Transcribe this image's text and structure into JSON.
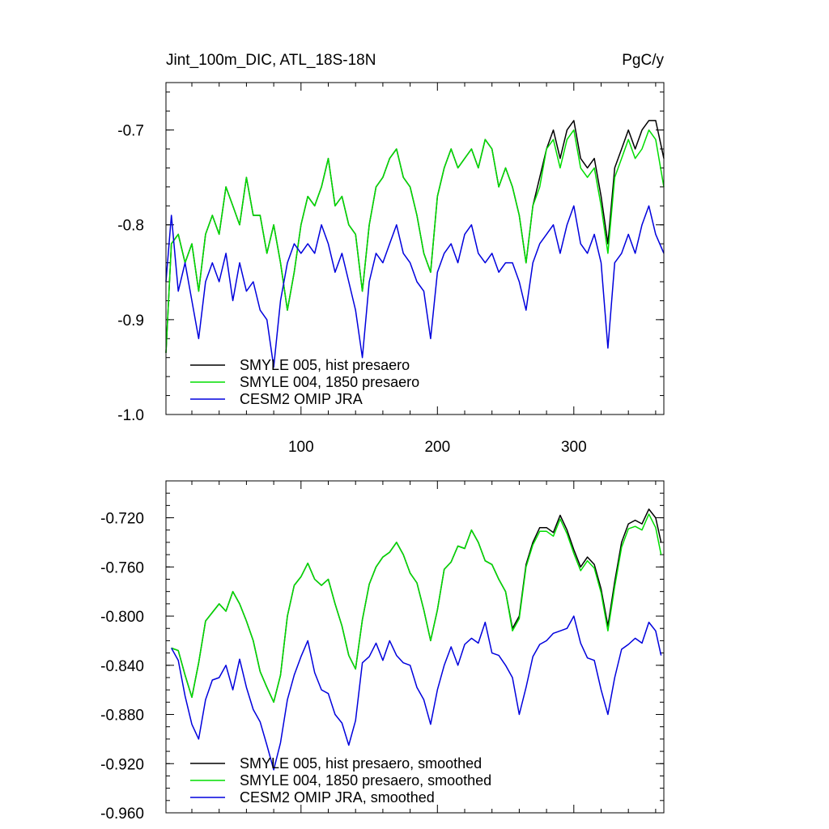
{
  "chart_data": [
    {
      "type": "line",
      "title": "Jint_100m_DIC, ATL_18S-18N",
      "units": "PgC/y",
      "xlabel": "",
      "ylabel": "",
      "xlim": [
        1,
        366
      ],
      "ylim": [
        -1.0,
        -0.65
      ],
      "xticks": [
        100,
        200,
        300
      ],
      "xtick_labels": [
        "100",
        "200",
        "300"
      ],
      "yticks": [
        -1.0,
        -0.9,
        -0.8,
        -0.7
      ],
      "ytick_labels": [
        "-1.0",
        "-0.9",
        "-0.8",
        "-0.7"
      ],
      "grid": false,
      "legend_position": "bottom-left",
      "series": [
        {
          "name": "SMYLE 005, hist presaero",
          "color": "#000000",
          "x": [
            1,
            5,
            10,
            15,
            20,
            25,
            30,
            35,
            40,
            45,
            50,
            55,
            60,
            65,
            70,
            75,
            80,
            85,
            90,
            95,
            100,
            105,
            110,
            115,
            120,
            125,
            130,
            135,
            140,
            145,
            150,
            155,
            160,
            165,
            170,
            175,
            180,
            185,
            190,
            195,
            200,
            205,
            210,
            215,
            220,
            225,
            230,
            235,
            240,
            245,
            250,
            255,
            260,
            265,
            270,
            275,
            280,
            285,
            290,
            295,
            300,
            305,
            310,
            315,
            320,
            325,
            330,
            335,
            340,
            345,
            350,
            355,
            360,
            366
          ],
          "values": [
            -0.935,
            -0.82,
            -0.81,
            -0.84,
            -0.82,
            -0.87,
            -0.81,
            -0.79,
            -0.81,
            -0.76,
            -0.78,
            -0.8,
            -0.75,
            -0.79,
            -0.79,
            -0.83,
            -0.8,
            -0.84,
            -0.89,
            -0.85,
            -0.8,
            -0.77,
            -0.78,
            -0.76,
            -0.73,
            -0.78,
            -0.77,
            -0.8,
            -0.81,
            -0.87,
            -0.8,
            -0.76,
            -0.75,
            -0.73,
            -0.72,
            -0.75,
            -0.76,
            -0.79,
            -0.83,
            -0.85,
            -0.77,
            -0.74,
            -0.72,
            -0.74,
            -0.73,
            -0.72,
            -0.74,
            -0.71,
            -0.72,
            -0.76,
            -0.74,
            -0.76,
            -0.79,
            -0.84,
            -0.78,
            -0.75,
            -0.72,
            -0.7,
            -0.73,
            -0.7,
            -0.69,
            -0.73,
            -0.74,
            -0.73,
            -0.77,
            -0.82,
            -0.74,
            -0.72,
            -0.7,
            -0.72,
            -0.7,
            -0.69,
            -0.69,
            -0.73
          ]
        },
        {
          "name": "SMYLE 004, 1850 presaero",
          "color": "#00dd00",
          "x": [
            1,
            5,
            10,
            15,
            20,
            25,
            30,
            35,
            40,
            45,
            50,
            55,
            60,
            65,
            70,
            75,
            80,
            85,
            90,
            95,
            100,
            105,
            110,
            115,
            120,
            125,
            130,
            135,
            140,
            145,
            150,
            155,
            160,
            165,
            170,
            175,
            180,
            185,
            190,
            195,
            200,
            205,
            210,
            215,
            220,
            225,
            230,
            235,
            240,
            245,
            250,
            255,
            260,
            265,
            270,
            275,
            280,
            285,
            290,
            295,
            300,
            305,
            310,
            315,
            320,
            325,
            330,
            335,
            340,
            345,
            350,
            355,
            360,
            366
          ],
          "values": [
            -0.935,
            -0.82,
            -0.81,
            -0.84,
            -0.82,
            -0.87,
            -0.81,
            -0.79,
            -0.81,
            -0.76,
            -0.78,
            -0.8,
            -0.75,
            -0.79,
            -0.79,
            -0.83,
            -0.8,
            -0.84,
            -0.89,
            -0.85,
            -0.8,
            -0.77,
            -0.78,
            -0.76,
            -0.73,
            -0.78,
            -0.77,
            -0.8,
            -0.81,
            -0.87,
            -0.8,
            -0.76,
            -0.75,
            -0.73,
            -0.72,
            -0.75,
            -0.76,
            -0.79,
            -0.83,
            -0.85,
            -0.77,
            -0.74,
            -0.72,
            -0.74,
            -0.73,
            -0.72,
            -0.74,
            -0.71,
            -0.72,
            -0.76,
            -0.74,
            -0.76,
            -0.79,
            -0.84,
            -0.78,
            -0.76,
            -0.72,
            -0.71,
            -0.74,
            -0.71,
            -0.7,
            -0.74,
            -0.75,
            -0.74,
            -0.78,
            -0.83,
            -0.75,
            -0.73,
            -0.71,
            -0.73,
            -0.72,
            -0.7,
            -0.71,
            -0.76
          ]
        },
        {
          "name": "CESM2 OMIP JRA",
          "color": "#0000dd",
          "x": [
            1,
            5,
            10,
            15,
            20,
            25,
            30,
            35,
            40,
            45,
            50,
            55,
            60,
            65,
            70,
            75,
            80,
            85,
            90,
            95,
            100,
            105,
            110,
            115,
            120,
            125,
            130,
            135,
            140,
            145,
            150,
            155,
            160,
            165,
            170,
            175,
            180,
            185,
            190,
            195,
            200,
            205,
            210,
            215,
            220,
            225,
            230,
            235,
            240,
            245,
            250,
            255,
            260,
            265,
            270,
            275,
            280,
            285,
            290,
            295,
            300,
            305,
            310,
            315,
            320,
            325,
            330,
            335,
            340,
            345,
            350,
            355,
            360,
            366
          ],
          "values": [
            -0.86,
            -0.79,
            -0.87,
            -0.84,
            -0.88,
            -0.92,
            -0.86,
            -0.84,
            -0.86,
            -0.83,
            -0.88,
            -0.84,
            -0.87,
            -0.86,
            -0.89,
            -0.9,
            -0.95,
            -0.88,
            -0.84,
            -0.82,
            -0.83,
            -0.82,
            -0.83,
            -0.8,
            -0.82,
            -0.85,
            -0.83,
            -0.86,
            -0.89,
            -0.94,
            -0.86,
            -0.83,
            -0.84,
            -0.82,
            -0.8,
            -0.83,
            -0.84,
            -0.86,
            -0.87,
            -0.92,
            -0.85,
            -0.83,
            -0.82,
            -0.84,
            -0.81,
            -0.8,
            -0.83,
            -0.84,
            -0.83,
            -0.85,
            -0.84,
            -0.84,
            -0.86,
            -0.89,
            -0.84,
            -0.82,
            -0.81,
            -0.8,
            -0.83,
            -0.8,
            -0.78,
            -0.82,
            -0.83,
            -0.81,
            -0.84,
            -0.93,
            -0.84,
            -0.83,
            -0.81,
            -0.83,
            -0.8,
            -0.78,
            -0.81,
            -0.83
          ]
        }
      ]
    },
    {
      "type": "line",
      "title": "",
      "xlabel": "",
      "ylabel": "",
      "xlim": [
        1,
        366
      ],
      "ylim": [
        -0.96,
        -0.69
      ],
      "xticks": [
        100,
        200,
        300
      ],
      "xtick_labels": [],
      "yticks": [
        -0.96,
        -0.92,
        -0.88,
        -0.84,
        -0.8,
        -0.76,
        -0.72
      ],
      "ytick_labels": [
        "-0.960",
        "-0.920",
        "-0.880",
        "-0.840",
        "-0.800",
        "-0.760",
        "-0.720"
      ],
      "grid": false,
      "legend_position": "bottom-left",
      "series": [
        {
          "name": "SMYLE 005, hist presaero, smoothed",
          "color": "#000000",
          "x": [
            5,
            10,
            15,
            20,
            25,
            30,
            35,
            40,
            45,
            50,
            55,
            60,
            65,
            70,
            75,
            80,
            85,
            90,
            95,
            100,
            105,
            110,
            115,
            120,
            125,
            130,
            135,
            140,
            145,
            150,
            155,
            160,
            165,
            170,
            175,
            180,
            185,
            190,
            195,
            200,
            205,
            210,
            215,
            220,
            225,
            230,
            235,
            240,
            245,
            250,
            255,
            260,
            265,
            270,
            275,
            280,
            285,
            290,
            295,
            300,
            305,
            310,
            315,
            320,
            325,
            330,
            335,
            340,
            345,
            350,
            355,
            360,
            364
          ],
          "values": [
            -0.826,
            -0.828,
            -0.848,
            -0.866,
            -0.838,
            -0.804,
            -0.797,
            -0.79,
            -0.796,
            -0.78,
            -0.79,
            -0.804,
            -0.82,
            -0.845,
            -0.858,
            -0.87,
            -0.848,
            -0.8,
            -0.775,
            -0.768,
            -0.757,
            -0.77,
            -0.775,
            -0.77,
            -0.79,
            -0.808,
            -0.832,
            -0.843,
            -0.803,
            -0.774,
            -0.76,
            -0.752,
            -0.748,
            -0.74,
            -0.75,
            -0.765,
            -0.773,
            -0.795,
            -0.82,
            -0.795,
            -0.762,
            -0.756,
            -0.743,
            -0.745,
            -0.73,
            -0.74,
            -0.755,
            -0.758,
            -0.77,
            -0.78,
            -0.81,
            -0.8,
            -0.758,
            -0.74,
            -0.728,
            -0.728,
            -0.732,
            -0.718,
            -0.73,
            -0.746,
            -0.76,
            -0.752,
            -0.758,
            -0.778,
            -0.808,
            -0.772,
            -0.74,
            -0.725,
            -0.722,
            -0.725,
            -0.713,
            -0.72,
            -0.74
          ]
        },
        {
          "name": "SMYLE 004, 1850 presaero, smoothed",
          "color": "#00dd00",
          "x": [
            5,
            10,
            15,
            20,
            25,
            30,
            35,
            40,
            45,
            50,
            55,
            60,
            65,
            70,
            75,
            80,
            85,
            90,
            95,
            100,
            105,
            110,
            115,
            120,
            125,
            130,
            135,
            140,
            145,
            150,
            155,
            160,
            165,
            170,
            175,
            180,
            185,
            190,
            195,
            200,
            205,
            210,
            215,
            220,
            225,
            230,
            235,
            240,
            245,
            250,
            255,
            260,
            265,
            270,
            275,
            280,
            285,
            290,
            295,
            300,
            305,
            310,
            315,
            320,
            325,
            330,
            335,
            340,
            345,
            350,
            355,
            360,
            364
          ],
          "values": [
            -0.826,
            -0.828,
            -0.848,
            -0.866,
            -0.838,
            -0.804,
            -0.797,
            -0.79,
            -0.796,
            -0.78,
            -0.79,
            -0.804,
            -0.82,
            -0.845,
            -0.858,
            -0.87,
            -0.848,
            -0.8,
            -0.775,
            -0.768,
            -0.757,
            -0.77,
            -0.775,
            -0.77,
            -0.79,
            -0.808,
            -0.832,
            -0.843,
            -0.803,
            -0.774,
            -0.76,
            -0.752,
            -0.748,
            -0.74,
            -0.75,
            -0.765,
            -0.773,
            -0.795,
            -0.82,
            -0.795,
            -0.762,
            -0.756,
            -0.743,
            -0.745,
            -0.73,
            -0.74,
            -0.755,
            -0.758,
            -0.77,
            -0.78,
            -0.812,
            -0.802,
            -0.76,
            -0.742,
            -0.731,
            -0.731,
            -0.735,
            -0.721,
            -0.733,
            -0.749,
            -0.763,
            -0.755,
            -0.761,
            -0.781,
            -0.812,
            -0.776,
            -0.744,
            -0.729,
            -0.727,
            -0.73,
            -0.717,
            -0.728,
            -0.75
          ]
        },
        {
          "name": "CESM2 OMIP JRA, smoothed",
          "color": "#0000dd",
          "x": [
            5,
            10,
            15,
            20,
            25,
            30,
            35,
            40,
            45,
            50,
            55,
            60,
            65,
            70,
            75,
            80,
            85,
            90,
            95,
            100,
            105,
            110,
            115,
            120,
            125,
            130,
            135,
            140,
            145,
            150,
            155,
            160,
            165,
            170,
            175,
            180,
            185,
            190,
            195,
            200,
            205,
            210,
            215,
            220,
            225,
            230,
            235,
            240,
            245,
            250,
            255,
            260,
            265,
            270,
            275,
            280,
            285,
            290,
            295,
            300,
            305,
            310,
            315,
            320,
            325,
            330,
            335,
            340,
            345,
            350,
            355,
            360,
            364
          ],
          "values": [
            -0.826,
            -0.836,
            -0.865,
            -0.888,
            -0.9,
            -0.868,
            -0.852,
            -0.85,
            -0.84,
            -0.86,
            -0.835,
            -0.858,
            -0.876,
            -0.886,
            -0.905,
            -0.925,
            -0.903,
            -0.868,
            -0.848,
            -0.833,
            -0.82,
            -0.846,
            -0.86,
            -0.863,
            -0.88,
            -0.887,
            -0.905,
            -0.885,
            -0.838,
            -0.833,
            -0.822,
            -0.836,
            -0.82,
            -0.832,
            -0.838,
            -0.84,
            -0.858,
            -0.868,
            -0.888,
            -0.86,
            -0.84,
            -0.825,
            -0.84,
            -0.823,
            -0.818,
            -0.822,
            -0.805,
            -0.83,
            -0.832,
            -0.84,
            -0.85,
            -0.88,
            -0.858,
            -0.833,
            -0.823,
            -0.82,
            -0.814,
            -0.812,
            -0.81,
            -0.8,
            -0.822,
            -0.834,
            -0.836,
            -0.86,
            -0.88,
            -0.85,
            -0.827,
            -0.823,
            -0.818,
            -0.822,
            -0.805,
            -0.812,
            -0.832
          ]
        }
      ]
    }
  ]
}
